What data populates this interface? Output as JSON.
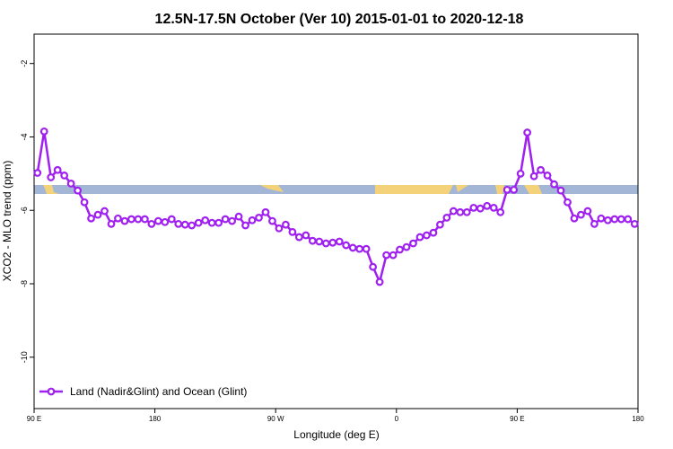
{
  "chart_data": {
    "type": "line",
    "title": "12.5N-17.5N October (Ver 10)   2015-01-01 to 2020-12-18",
    "x_label": "Longitude (deg E)",
    "y_label": "XCO2 - MLO trend (ppm)",
    "xlim": [
      90,
      540
    ],
    "ylim": [
      -11.4,
      -1.2
    ],
    "xticks": [
      {
        "value": 90,
        "label": "90 E"
      },
      {
        "value": 180,
        "label": "180"
      },
      {
        "value": 270,
        "label": "90 W"
      },
      {
        "value": 360,
        "label": "0"
      },
      {
        "value": 450,
        "label": "90 E"
      },
      {
        "value": 540,
        "label": "180"
      }
    ],
    "yticks": [
      -2,
      -4,
      -6,
      -8,
      -10
    ],
    "legend": "bottom-left",
    "series": [
      {
        "name": "Land (Nadir&Glint) and Ocean (Glint)",
        "color": "#a020f0",
        "x": [
          92.5,
          97.5,
          102.5,
          107.5,
          112.5,
          117.5,
          122.5,
          127.5,
          132.5,
          137.5,
          142.5,
          147.5,
          152.5,
          157.5,
          162.5,
          167.5,
          172.5,
          177.5,
          182.5,
          187.5,
          192.5,
          197.5,
          202.5,
          207.5,
          212.5,
          217.5,
          222.5,
          227.5,
          232.5,
          237.5,
          242.5,
          247.5,
          252.5,
          257.5,
          262.5,
          267.5,
          272.5,
          277.5,
          282.5,
          287.5,
          292.5,
          297.5,
          302.5,
          307.5,
          312.5,
          317.5,
          322.5,
          327.5,
          332.5,
          337.5,
          342.5,
          347.5,
          352.5,
          357.5,
          362.5,
          367.5,
          372.5,
          377.5,
          382.5,
          387.5,
          392.5,
          397.5,
          402.5,
          407.5,
          412.5,
          417.5,
          422.5,
          427.5,
          432.5,
          437.5,
          442.5,
          447.5,
          452.5,
          457.5,
          462.5,
          467.5,
          472.5,
          477.5,
          482.5,
          487.5,
          492.5,
          497.5,
          502.5,
          507.5,
          512.5,
          517.5,
          522.5,
          527.5,
          532.5,
          537.5
        ],
        "values": [
          -4.98,
          -3.85,
          -5.1,
          -4.9,
          -5.05,
          -5.27,
          -5.46,
          -5.78,
          -6.22,
          -6.12,
          -6.02,
          -6.37,
          -6.22,
          -6.29,
          -6.24,
          -6.24,
          -6.24,
          -6.37,
          -6.29,
          -6.32,
          -6.24,
          -6.37,
          -6.39,
          -6.41,
          -6.34,
          -6.27,
          -6.34,
          -6.34,
          -6.24,
          -6.29,
          -6.17,
          -6.41,
          -6.27,
          -6.2,
          -6.05,
          -6.29,
          -6.49,
          -6.39,
          -6.59,
          -6.73,
          -6.68,
          -6.83,
          -6.85,
          -6.9,
          -6.88,
          -6.85,
          -6.95,
          -7.02,
          -7.05,
          -7.05,
          -7.54,
          -7.95,
          -7.22,
          -7.22,
          -7.07,
          -7.0,
          -6.9,
          -6.73,
          -6.68,
          -6.61,
          -6.39,
          -6.2,
          -6.02,
          -6.05,
          -6.05,
          -5.93,
          -5.95,
          -5.88,
          -5.93,
          -6.05,
          -5.44,
          -5.44,
          -5.0,
          -3.88,
          -5.07,
          -4.9,
          -5.05,
          -5.29,
          -5.46,
          -5.78,
          -6.22,
          -6.12,
          -6.02,
          -6.37,
          -6.22,
          -6.27,
          -6.24,
          -6.24,
          -6.24,
          -6.37
        ]
      }
    ]
  }
}
